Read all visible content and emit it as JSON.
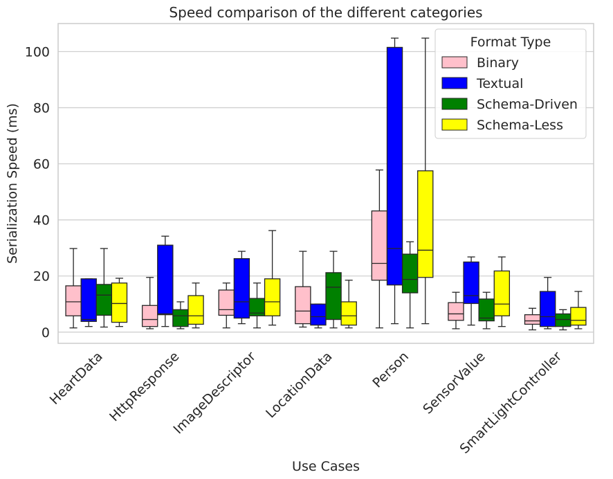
{
  "chart_data": {
    "type": "boxplot",
    "title": "Speed comparison of the different categories",
    "xlabel": "Use Cases",
    "ylabel": "Serialization Speed (ms)",
    "ylim": [
      -4,
      110
    ],
    "yticks": [
      0,
      20,
      40,
      60,
      80,
      100
    ],
    "grid": true,
    "legend": {
      "title": "Format Type",
      "placement": "top-right"
    },
    "categories": [
      "HeartData",
      "HttpResponse",
      "ImageDescriptor",
      "LocationData",
      "Person",
      "SensorValue",
      "SmartLightController"
    ],
    "series": [
      {
        "name": "Binary",
        "color": "#ffc0cb",
        "boxes": [
          {
            "whislo": 1.5,
            "q1": 5.8,
            "med": 10.8,
            "q3": 16.5,
            "whishi": 29.8
          },
          {
            "whislo": 1.2,
            "q1": 2.0,
            "med": 4.5,
            "q3": 9.5,
            "whishi": 19.5
          },
          {
            "whislo": 1.5,
            "q1": 6.0,
            "med": 8.0,
            "q3": 15.0,
            "whishi": 17.5
          },
          {
            "whislo": 1.8,
            "q1": 3.0,
            "med": 7.5,
            "q3": 16.2,
            "whishi": 28.8
          },
          {
            "whislo": 1.5,
            "q1": 18.5,
            "med": 24.5,
            "q3": 43.2,
            "whishi": 57.8
          },
          {
            "whislo": 1.2,
            "q1": 4.2,
            "med": 6.5,
            "q3": 10.5,
            "whishi": 14.2
          },
          {
            "whislo": 0.8,
            "q1": 2.8,
            "med": 4.0,
            "q3": 6.2,
            "whishi": 8.5
          }
        ]
      },
      {
        "name": "Textual",
        "color": "#0000ff",
        "boxes": [
          {
            "whislo": 2.0,
            "q1": 3.8,
            "med": 4.5,
            "q3": 19.0,
            "whishi": 19.0
          },
          {
            "whislo": 2.0,
            "q1": 6.2,
            "med": 6.5,
            "q3": 31.0,
            "whishi": 34.2
          },
          {
            "whislo": 3.0,
            "q1": 5.0,
            "med": 10.8,
            "q3": 26.2,
            "whishi": 28.8
          },
          {
            "whislo": 1.5,
            "q1": 2.5,
            "med": 5.5,
            "q3": 10.0,
            "whishi": 10.0
          },
          {
            "whislo": 3.0,
            "q1": 16.8,
            "med": 29.8,
            "q3": 101.5,
            "whishi": 104.8
          },
          {
            "whislo": 2.5,
            "q1": 10.2,
            "med": 13.0,
            "q3": 25.0,
            "whishi": 26.8
          },
          {
            "whislo": 1.2,
            "q1": 2.0,
            "med": 5.5,
            "q3": 14.5,
            "whishi": 19.5
          }
        ]
      },
      {
        "name": "Schema-Driven",
        "color": "#008000",
        "boxes": [
          {
            "whislo": 1.8,
            "q1": 6.0,
            "med": 13.2,
            "q3": 17.0,
            "whishi": 29.8
          },
          {
            "whislo": 1.2,
            "q1": 2.0,
            "med": 5.8,
            "q3": 8.0,
            "whishi": 10.8
          },
          {
            "whislo": 1.5,
            "q1": 5.8,
            "med": 6.8,
            "q3": 12.0,
            "whishi": 17.5
          },
          {
            "whislo": 1.5,
            "q1": 4.5,
            "med": 16.0,
            "q3": 21.2,
            "whishi": 28.8
          },
          {
            "whislo": 1.5,
            "q1": 14.0,
            "med": 18.8,
            "q3": 27.8,
            "whishi": 32.2
          },
          {
            "whislo": 1.2,
            "q1": 4.0,
            "med": 5.0,
            "q3": 11.8,
            "whishi": 14.2
          },
          {
            "whislo": 0.8,
            "q1": 2.0,
            "med": 4.5,
            "q3": 6.5,
            "whishi": 8.0
          }
        ]
      },
      {
        "name": "Schema-Less",
        "color": "#ffff00",
        "boxes": [
          {
            "whislo": 2.0,
            "q1": 3.5,
            "med": 10.2,
            "q3": 17.5,
            "whishi": 19.2
          },
          {
            "whislo": 1.5,
            "q1": 2.8,
            "med": 5.8,
            "q3": 13.0,
            "whishi": 17.5
          },
          {
            "whislo": 2.5,
            "q1": 5.8,
            "med": 10.8,
            "q3": 19.0,
            "whishi": 36.2
          },
          {
            "whislo": 1.5,
            "q1": 2.5,
            "med": 5.8,
            "q3": 10.8,
            "whishi": 18.5
          },
          {
            "whislo": 3.0,
            "q1": 19.5,
            "med": 29.2,
            "q3": 57.5,
            "whishi": 104.8
          },
          {
            "whislo": 2.0,
            "q1": 5.8,
            "med": 10.0,
            "q3": 21.8,
            "whishi": 26.8
          },
          {
            "whislo": 1.2,
            "q1": 2.5,
            "med": 4.2,
            "q3": 8.8,
            "whishi": 14.5
          }
        ]
      }
    ]
  }
}
